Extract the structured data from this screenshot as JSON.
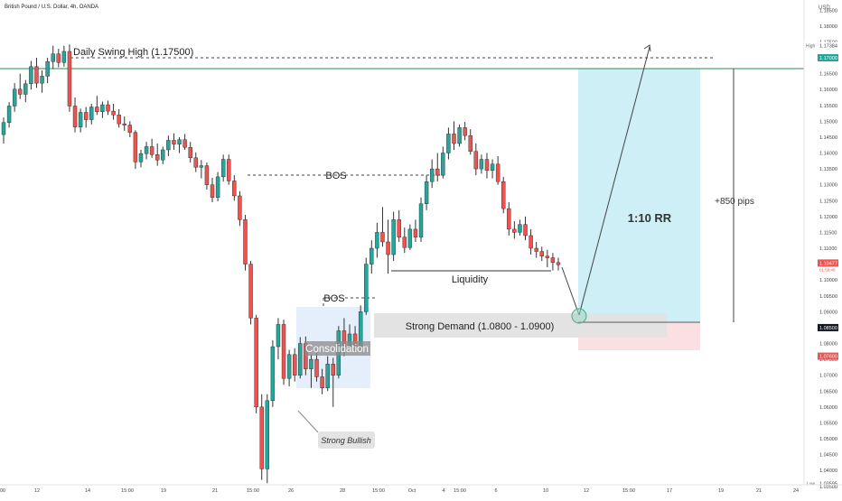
{
  "header": {
    "symbol_title": "British Pound / U.S. Dollar, 4h, OANDA",
    "currency": "USD"
  },
  "colors": {
    "bull": "#26a69a",
    "bear": "#ef5350",
    "wick": "#333333",
    "target_zone": "#cdeff5",
    "stop_zone": "#fbe0e3",
    "demand_zone": "#e3e3e3",
    "consolidation_zone": "#e5eefb",
    "swing_line": "#2e8b57",
    "tag_dark": "#131722",
    "tag_teal": "#26a69a",
    "tag_red": "#ef5350"
  },
  "chart_data": {
    "type": "candlestick",
    "title": "British Pound / U.S. Dollar, 4h, OANDA",
    "ylabel": "USD",
    "ylim": [
      1.0355,
      1.1882
    ],
    "ytick_labels": [
      "1.18500",
      "1.18000",
      "1.17500",
      "1.17000",
      "1.16500",
      "1.16000",
      "1.15500",
      "1.15000",
      "1.14500",
      "1.14000",
      "1.13500",
      "1.13000",
      "1.12500",
      "1.12000",
      "1.11500",
      "1.11000",
      "1.10500",
      "1.10000",
      "1.09500",
      "1.09000",
      "1.08500",
      "1.08000",
      "1.07500",
      "1.07000",
      "1.06500",
      "1.06000",
      "1.05500",
      "1.05000",
      "1.04500",
      "1.04000",
      "1.03500"
    ],
    "xtick_labels": [
      "00",
      "12",
      "14",
      "15:00",
      "19",
      "21",
      "15:00",
      "26",
      "28",
      "15:00",
      "Oct",
      "4",
      "15:00",
      "6",
      "10",
      "12",
      "15:00",
      "17",
      "19",
      "21",
      "24"
    ],
    "price_tags": {
      "high": {
        "label": "High",
        "value": "1.17384"
      },
      "swing": {
        "value": "1.17000"
      },
      "last": {
        "value": "1.10477",
        "countdown": "01:59:48"
      },
      "entry": {
        "value": "1.08500"
      },
      "stop": {
        "value": "1.07600"
      },
      "low": {
        "label": "Low",
        "value": "1.03595"
      }
    },
    "candles": [
      [
        1.1458,
        1.1512,
        1.143,
        1.1496
      ],
      [
        1.1496,
        1.156,
        1.148,
        1.1548
      ],
      [
        1.1548,
        1.162,
        1.153,
        1.1601
      ],
      [
        1.1601,
        1.165,
        1.157,
        1.1585
      ],
      [
        1.1585,
        1.163,
        1.156,
        1.1618
      ],
      [
        1.1618,
        1.169,
        1.16,
        1.1672
      ],
      [
        1.1672,
        1.17,
        1.1605,
        1.162
      ],
      [
        1.162,
        1.166,
        1.159,
        1.1642
      ],
      [
        1.1642,
        1.17,
        1.162,
        1.1688
      ],
      [
        1.1688,
        1.1738,
        1.1665,
        1.1712
      ],
      [
        1.1712,
        1.1728,
        1.167,
        1.1685
      ],
      [
        1.1685,
        1.1738,
        1.1672,
        1.172
      ],
      [
        1.172,
        1.1742,
        1.153,
        1.1548
      ],
      [
        1.1548,
        1.1575,
        1.1465,
        1.1482
      ],
      [
        1.1482,
        1.154,
        1.1465,
        1.1528
      ],
      [
        1.1528,
        1.1545,
        1.148,
        1.1505
      ],
      [
        1.1505,
        1.1555,
        1.149,
        1.1545
      ],
      [
        1.1545,
        1.158,
        1.152,
        1.153
      ],
      [
        1.153,
        1.1562,
        1.151,
        1.1552
      ],
      [
        1.1552,
        1.1565,
        1.152,
        1.1532
      ],
      [
        1.1532,
        1.1555,
        1.1505,
        1.152
      ],
      [
        1.152,
        1.1538,
        1.148,
        1.1492
      ],
      [
        1.1492,
        1.1515,
        1.147,
        1.1488
      ],
      [
        1.1488,
        1.15,
        1.145,
        1.1465
      ],
      [
        1.1465,
        1.1472,
        1.135,
        1.1372
      ],
      [
        1.1372,
        1.141,
        1.1355,
        1.1398
      ],
      [
        1.1398,
        1.1435,
        1.138,
        1.142
      ],
      [
        1.142,
        1.1445,
        1.1385,
        1.1395
      ],
      [
        1.1395,
        1.143,
        1.136,
        1.1378
      ],
      [
        1.1378,
        1.142,
        1.1365,
        1.141
      ],
      [
        1.141,
        1.1455,
        1.139,
        1.144
      ],
      [
        1.144,
        1.1462,
        1.141,
        1.1428
      ],
      [
        1.1428,
        1.145,
        1.14,
        1.1442
      ],
      [
        1.1442,
        1.146,
        1.141,
        1.1418
      ],
      [
        1.1418,
        1.1435,
        1.137,
        1.1385
      ],
      [
        1.1385,
        1.1402,
        1.134,
        1.1355
      ],
      [
        1.1355,
        1.1378,
        1.132,
        1.136
      ],
      [
        1.136,
        1.137,
        1.1285,
        1.13
      ],
      [
        1.13,
        1.1322,
        1.1245,
        1.126
      ],
      [
        1.126,
        1.134,
        1.1248,
        1.1325
      ],
      [
        1.1325,
        1.1395,
        1.131,
        1.138
      ],
      [
        1.138,
        1.1395,
        1.13,
        1.1312
      ],
      [
        1.1312,
        1.133,
        1.125,
        1.1265
      ],
      [
        1.1265,
        1.128,
        1.117,
        1.119
      ],
      [
        1.119,
        1.1205,
        1.103,
        1.105
      ],
      [
        1.105,
        1.106,
        1.086,
        1.088
      ],
      [
        1.088,
        1.089,
        1.058,
        1.06
      ],
      [
        1.06,
        1.064,
        1.037,
        1.0405
      ],
      [
        1.0405,
        1.064,
        1.036,
        1.062
      ],
      [
        1.062,
        1.081,
        1.06,
        1.079
      ],
      [
        1.079,
        1.088,
        1.075,
        1.086
      ],
      [
        1.086,
        1.0875,
        1.067,
        1.069
      ],
      [
        1.069,
        1.078,
        1.0665,
        1.0765
      ],
      [
        1.0765,
        1.0785,
        1.068,
        1.07
      ],
      [
        1.07,
        1.082,
        1.069,
        1.08
      ],
      [
        1.08,
        1.0822,
        1.07,
        1.072
      ],
      [
        1.072,
        1.0765,
        1.066,
        1.075
      ],
      [
        1.075,
        1.077,
        1.068,
        1.0695
      ],
      [
        1.0695,
        1.072,
        1.064,
        1.066
      ],
      [
        1.066,
        1.076,
        1.065,
        1.0735
      ],
      [
        1.0735,
        1.0755,
        1.06,
        1.07
      ],
      [
        1.07,
        1.0855,
        1.069,
        1.084
      ],
      [
        1.084,
        1.088,
        1.076,
        1.079
      ],
      [
        1.079,
        1.086,
        1.078,
        1.083
      ],
      [
        1.083,
        1.0855,
        1.0775,
        1.079
      ],
      [
        1.079,
        1.092,
        1.078,
        1.09
      ],
      [
        1.09,
        1.107,
        1.089,
        1.105
      ],
      [
        1.105,
        1.1125,
        1.102,
        1.11
      ],
      [
        1.11,
        1.118,
        1.107,
        1.115
      ],
      [
        1.115,
        1.123,
        1.1105,
        1.112
      ],
      [
        1.112,
        1.119,
        1.102,
        1.108
      ],
      [
        1.108,
        1.1215,
        1.106,
        1.119
      ],
      [
        1.119,
        1.122,
        1.112,
        1.1135
      ],
      [
        1.1135,
        1.1165,
        1.1085,
        1.1102
      ],
      [
        1.1102,
        1.1175,
        1.1095,
        1.116
      ],
      [
        1.116,
        1.119,
        1.112,
        1.1135
      ],
      [
        1.1135,
        1.126,
        1.112,
        1.124
      ],
      [
        1.124,
        1.133,
        1.122,
        1.131
      ],
      [
        1.131,
        1.138,
        1.129,
        1.135
      ],
      [
        1.135,
        1.14,
        1.131,
        1.133
      ],
      [
        1.133,
        1.142,
        1.132,
        1.14
      ],
      [
        1.14,
        1.148,
        1.138,
        1.146
      ],
      [
        1.146,
        1.15,
        1.141,
        1.143
      ],
      [
        1.143,
        1.149,
        1.142,
        1.148
      ],
      [
        1.148,
        1.1498,
        1.144,
        1.1455
      ],
      [
        1.1455,
        1.1475,
        1.1395,
        1.1405
      ],
      [
        1.1405,
        1.143,
        1.133,
        1.135
      ],
      [
        1.135,
        1.1395,
        1.1335,
        1.138
      ],
      [
        1.138,
        1.14,
        1.132,
        1.1345
      ],
      [
        1.1345,
        1.138,
        1.132,
        1.1365
      ],
      [
        1.1365,
        1.139,
        1.13,
        1.131
      ],
      [
        1.131,
        1.1325,
        1.121,
        1.1225
      ],
      [
        1.1225,
        1.1245,
        1.114,
        1.116
      ],
      [
        1.116,
        1.1185,
        1.113,
        1.115
      ],
      [
        1.115,
        1.119,
        1.114,
        1.1175
      ],
      [
        1.1175,
        1.12,
        1.1125,
        1.114
      ],
      [
        1.114,
        1.116,
        1.108,
        1.11
      ],
      [
        1.11,
        1.112,
        1.107,
        1.109
      ],
      [
        1.109,
        1.1105,
        1.106,
        1.1075
      ],
      [
        1.1075,
        1.1095,
        1.104,
        1.107
      ],
      [
        1.107,
        1.1085,
        1.103,
        1.1055
      ],
      [
        1.1055,
        1.107,
        1.103,
        1.1048
      ]
    ]
  },
  "annotations": {
    "swing_high": "Daily Swing High (1.17500)",
    "bos_upper": "BOS",
    "bos_lower": "BOS",
    "liquidity": "Liquidity",
    "demand": "Strong Demand (1.0800 - 1.0900)",
    "consolidation": "Consolidation",
    "strong_bullish": "Strong Bullish",
    "rr": "1:10 RR",
    "pips": "+850 pips"
  }
}
